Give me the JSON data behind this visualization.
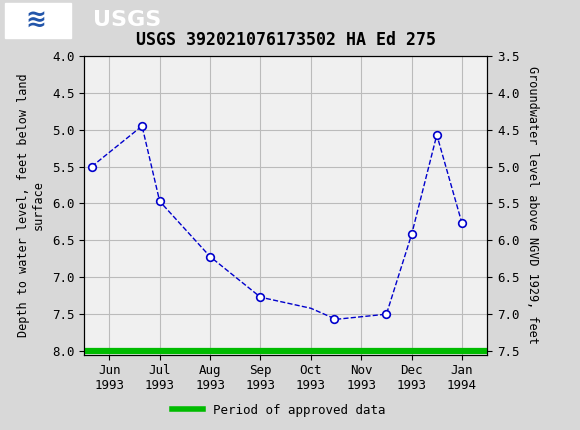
{
  "title": "USGS 392021076173502 HA Ed 275",
  "header_bg_color": "#1a6b3c",
  "plot_bg_color": "#f0f0f0",
  "fig_bg_color": "#d8d8d8",
  "grid_color": "#bbbbbb",
  "line_color": "#0000cc",
  "marker_facecolor": "white",
  "marker_edgecolor": "#0000cc",
  "approved_color": "#00bb00",
  "x_labels": [
    "Jun\n1993",
    "Jul\n1993",
    "Aug\n1993",
    "Sep\n1993",
    "Oct\n1993",
    "Nov\n1993",
    "Dec\n1993",
    "Jan\n1994"
  ],
  "x_positions": [
    0,
    1,
    2,
    3,
    4,
    5,
    6,
    7
  ],
  "data_x": [
    -0.35,
    0.65,
    1.0,
    2.0,
    3.0,
    4.0,
    4.5,
    5.5,
    6.0,
    6.5,
    7.0
  ],
  "data_y": [
    5.5,
    4.95,
    5.97,
    6.72,
    7.27,
    7.42,
    7.57,
    7.5,
    6.42,
    5.07,
    6.27
  ],
  "marker_x": [
    -0.35,
    0.65,
    1.0,
    2.0,
    3.0,
    4.45,
    5.5,
    6.0,
    6.5,
    7.0
  ],
  "marker_y": [
    5.5,
    4.95,
    5.97,
    6.72,
    7.27,
    7.57,
    7.5,
    6.42,
    5.07,
    6.27
  ],
  "ylim_left": [
    4.0,
    8.05
  ],
  "ylim_right": [
    3.5,
    7.55
  ],
  "ylabel_left": "Depth to water level, feet below land\nsurface",
  "ylabel_right": "Groundwater level above NGVD 1929, feet",
  "yticks_left": [
    4.0,
    4.5,
    5.0,
    5.5,
    6.0,
    6.5,
    7.0,
    7.5,
    8.0
  ],
  "yticks_right": [
    3.5,
    4.0,
    4.5,
    5.0,
    5.5,
    6.0,
    6.5,
    7.0,
    7.5
  ],
  "legend_label": "Period of approved data",
  "title_fontsize": 12,
  "axis_fontsize": 8.5,
  "tick_fontsize": 9
}
